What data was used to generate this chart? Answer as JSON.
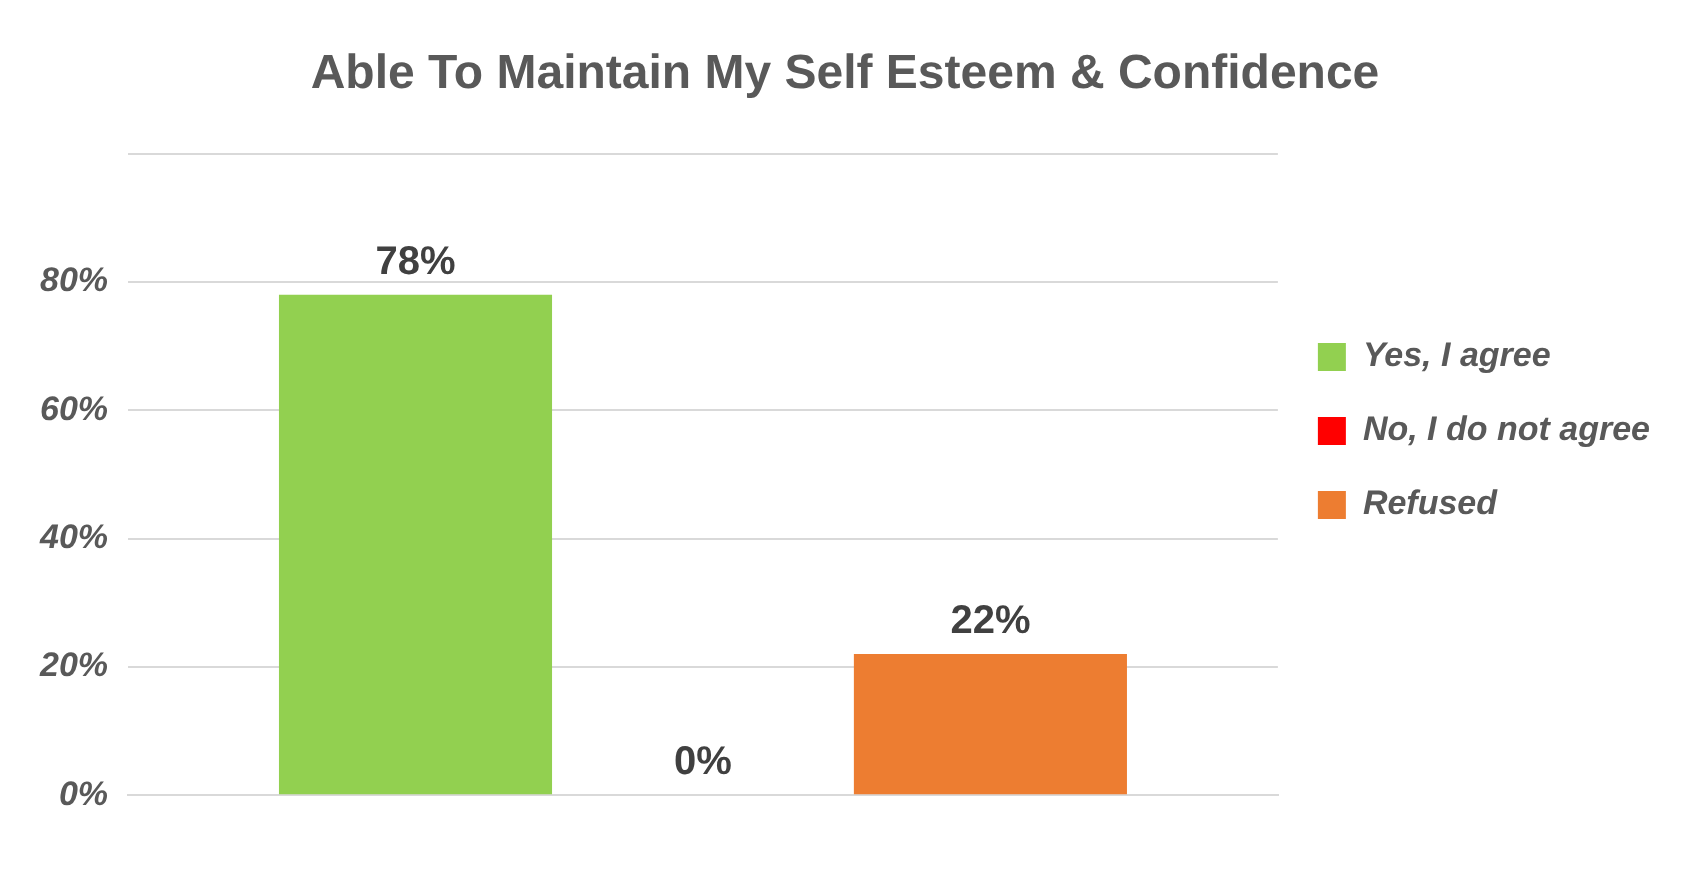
{
  "chart_data": {
    "type": "bar",
    "title": "Able To Maintain My Self Esteem & Confidence",
    "categories": [
      null
    ],
    "series": [
      {
        "name": "Yes, I agree",
        "color": "#92d050",
        "values": [
          78
        ],
        "value_labels": [
          "78%"
        ]
      },
      {
        "name": "No, I do not agree",
        "color": "#ff0000",
        "values": [
          0
        ],
        "value_labels": [
          "0%"
        ]
      },
      {
        "name": "Refused",
        "color": "#ed7d31",
        "values": [
          22
        ],
        "value_labels": [
          "22%"
        ]
      }
    ],
    "ylim": [
      0,
      100
    ],
    "yticks": [
      {
        "value": 0,
        "label": "0%"
      },
      {
        "value": 20,
        "label": "20%"
      },
      {
        "value": 40,
        "label": "40%"
      },
      {
        "value": 60,
        "label": "60%"
      },
      {
        "value": 80,
        "label": "80%"
      },
      {
        "value": 100,
        "label": null
      }
    ],
    "grid": "y",
    "legend": "right"
  }
}
